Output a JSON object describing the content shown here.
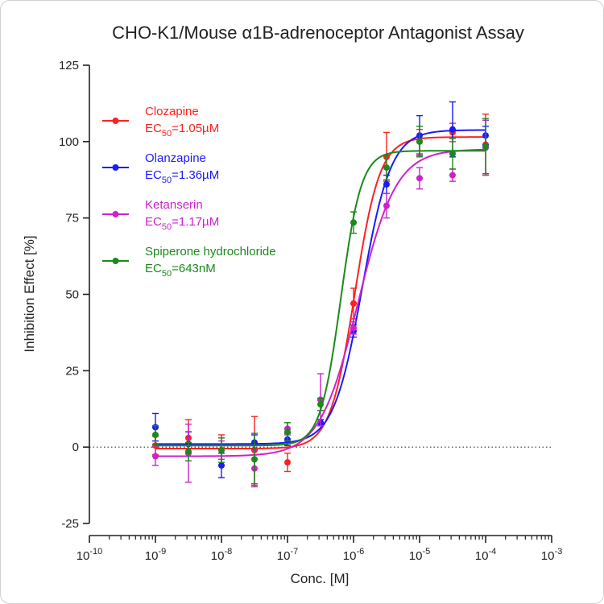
{
  "chart_data": {
    "type": "scatter",
    "title": "CHO-K1/Mouse α1B-adrenoceptor Antagonist Assay",
    "xlabel": "Conc. [M]",
    "ylabel": "Inhibition Effect [%]",
    "x_scale": "log",
    "xlim": [
      1e-10,
      0.001
    ],
    "ylim": [
      -25,
      125
    ],
    "y_ticks": [
      -25,
      0,
      25,
      50,
      75,
      100,
      125
    ],
    "y_tick_labels": [
      "-25",
      "0",
      "25",
      "50",
      "75",
      "100",
      "125"
    ],
    "x_tick_labels": [
      {
        "base": "10",
        "exp": "-10"
      },
      {
        "base": "10",
        "exp": "-9"
      },
      {
        "base": "10",
        "exp": "-8"
      },
      {
        "base": "10",
        "exp": "-7"
      },
      {
        "base": "10",
        "exp": "-6"
      },
      {
        "base": "10",
        "exp": "-5"
      },
      {
        "base": "10",
        "exp": "-4"
      },
      {
        "base": "10",
        "exp": "-3"
      }
    ],
    "reference_line_y": 0,
    "grid": false,
    "legend_position": "top-left",
    "x": [
      1e-09,
      3.16e-09,
      1e-08,
      3.16e-08,
      1e-07,
      3.16e-07,
      1e-06,
      3.16e-06,
      1e-05,
      3.16e-05,
      0.0001
    ],
    "series": [
      {
        "name": "Clozapine",
        "ec50_label": {
          "prefix": "EC",
          "sub": "50",
          "suffix": "=1.05µM"
        },
        "color": "#ff2020",
        "y": [
          0.5,
          3,
          -1,
          -1,
          -5,
          8,
          47,
          95,
          100,
          103,
          99
        ],
        "err": [
          3,
          6,
          5,
          11,
          3,
          1,
          5,
          8,
          4,
          3,
          10
        ],
        "fit": {
          "bottom": -0.5,
          "top": 101.5,
          "ec50": 1.05e-06,
          "hill": 2.3
        }
      },
      {
        "name": "Olanzapine",
        "ec50_label": {
          "prefix": "EC",
          "sub": "50",
          "suffix": "=1.36µM"
        },
        "color": "#1a1aff",
        "y": [
          6.5,
          1,
          -6,
          1.5,
          2.5,
          8,
          38,
          86,
          102,
          104,
          102
        ],
        "err": [
          4.5,
          4,
          4,
          2.5,
          2,
          1,
          2,
          3,
          6.5,
          9,
          3
        ],
        "fit": {
          "bottom": 1.0,
          "top": 103.8,
          "ec50": 1.36e-06,
          "hill": 2.0
        }
      },
      {
        "name": "Ketanserin",
        "ec50_label": {
          "prefix": "EC",
          "sub": "50",
          "suffix": "=1.17µM"
        },
        "color": "#cc22cc",
        "y": [
          -3,
          -2,
          -1,
          -7,
          6,
          15.5,
          39,
          79,
          88,
          89,
          98
        ],
        "err": [
          3,
          9.5,
          3,
          6,
          2,
          8.5,
          2,
          4,
          3.5,
          2,
          9
        ],
        "fit": {
          "bottom": -3.0,
          "top": 97.5,
          "ec50": 1.17e-06,
          "hill": 1.5
        }
      },
      {
        "name": "Spiperone hydrochloride",
        "ec50_label": {
          "prefix": "EC",
          "sub": "50",
          "suffix": "=643nM"
        },
        "color": "#1a8a1a",
        "y": [
          4,
          -1.5,
          -1,
          -4,
          5,
          14,
          73.5,
          91.5,
          100,
          96,
          98.5
        ],
        "err": [
          3,
          3,
          4,
          8.5,
          3,
          2,
          3.5,
          4,
          5,
          5,
          9
        ],
        "fit": {
          "bottom": 0.5,
          "top": 97.0,
          "ec50": 6.43e-07,
          "hill": 2.8
        }
      }
    ]
  }
}
